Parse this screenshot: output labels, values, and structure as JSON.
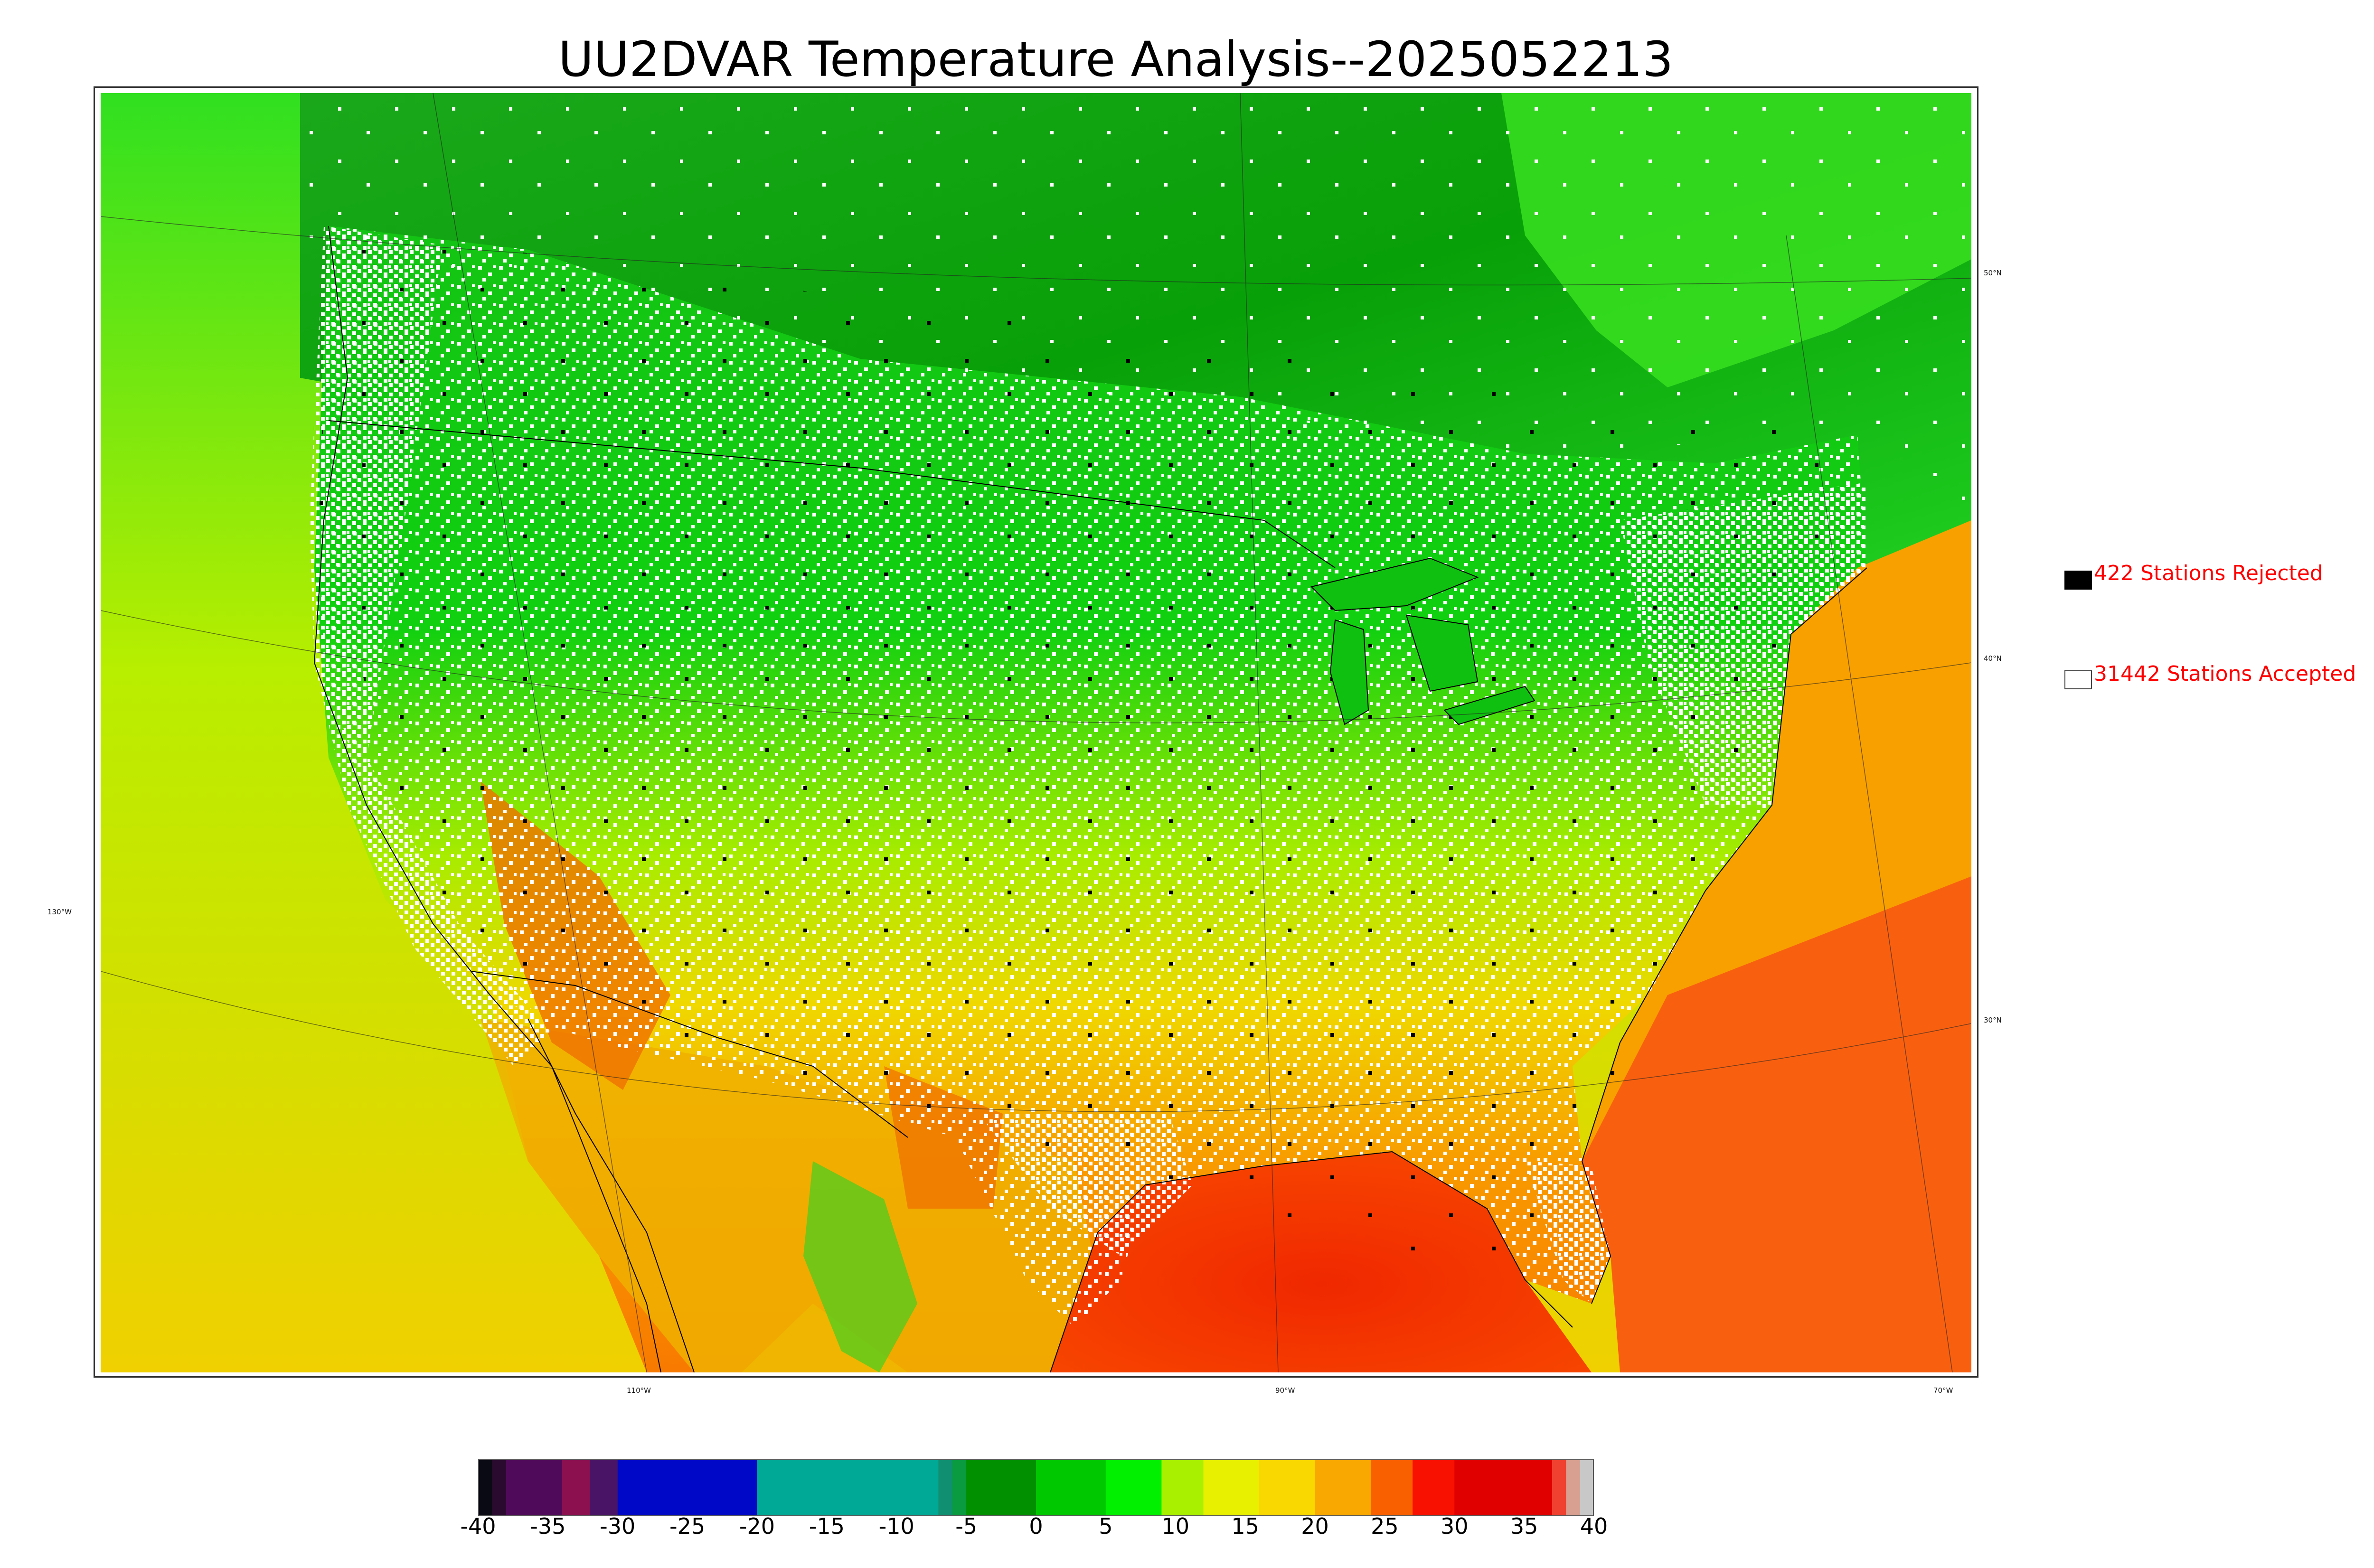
{
  "title": "UU2DVAR Temperature Analysis--2025052213",
  "legend": {
    "rejected_label": "422 Stations Rejected",
    "accepted_label": "31442 Stations Accepted",
    "rejected_color": "#000000",
    "accepted_color": "#ffffff",
    "label_color": "#ff0000"
  },
  "graticule": {
    "lat_labels": [
      "50°N",
      "40°N",
      "30°N"
    ],
    "lon_labels": [
      "130°W",
      "110°W",
      "90°W",
      "70°W"
    ]
  },
  "colorbar": {
    "ticks": [
      "-40",
      "-35",
      "-30",
      "-25",
      "-20",
      "-15",
      "-10",
      "-5",
      "0",
      "5",
      "10",
      "15",
      "20",
      "25",
      "30",
      "35",
      "40"
    ],
    "range": [
      -40,
      40
    ],
    "segments": [
      {
        "from": -40,
        "to": -39,
        "color": "#0a0a14"
      },
      {
        "from": -39,
        "to": -38,
        "color": "#2a0a2e"
      },
      {
        "from": -38,
        "to": -34,
        "color": "#4f0a5a"
      },
      {
        "from": -34,
        "to": -32,
        "color": "#8c1050"
      },
      {
        "from": -32,
        "to": -30,
        "color": "#4a1466"
      },
      {
        "from": -30,
        "to": -20,
        "color": "#0008c8"
      },
      {
        "from": -20,
        "to": -7,
        "color": "#00a896"
      },
      {
        "from": -7,
        "to": -6,
        "color": "#109070"
      },
      {
        "from": -6,
        "to": -5,
        "color": "#0a9a40"
      },
      {
        "from": -5,
        "to": 0,
        "color": "#009000"
      },
      {
        "from": 0,
        "to": 5,
        "color": "#00c800"
      },
      {
        "from": 5,
        "to": 9,
        "color": "#00f000"
      },
      {
        "from": 9,
        "to": 12,
        "color": "#a8f000"
      },
      {
        "from": 12,
        "to": 16,
        "color": "#e8f000"
      },
      {
        "from": 16,
        "to": 20,
        "color": "#f8d800"
      },
      {
        "from": 20,
        "to": 24,
        "color": "#f8a800"
      },
      {
        "from": 24,
        "to": 27,
        "color": "#f86000"
      },
      {
        "from": 27,
        "to": 30,
        "color": "#f81000"
      },
      {
        "from": 30,
        "to": 37,
        "color": "#e00000"
      },
      {
        "from": 37,
        "to": 38,
        "color": "#f04030"
      },
      {
        "from": 38,
        "to": 39,
        "color": "#d8a090"
      },
      {
        "from": 39,
        "to": 40,
        "color": "#c8c8c8"
      }
    ]
  }
}
